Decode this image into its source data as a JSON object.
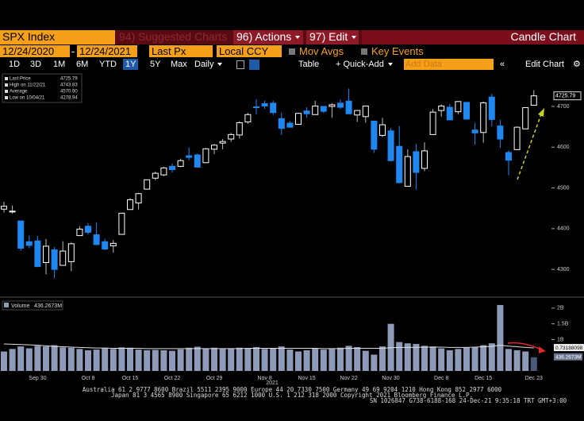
{
  "toolbar": {
    "ticker": "SPX Index",
    "suggested": "94) Suggested Charts",
    "actions": "96) Actions",
    "edit": "97) Edit",
    "chart_type": "Candle Chart",
    "start_date": "12/24/2020",
    "dash": "-",
    "end_date": "12/24/2021",
    "field": "Last Px",
    "currency": "Local CCY",
    "mov_avgs": "Mov Avgs",
    "key_events": "Key Events",
    "periods": [
      "1D",
      "3D",
      "1M",
      "6M",
      "YTD",
      "1Y",
      "5Y",
      "Max"
    ],
    "active_period": "1Y",
    "frequency": "Daily",
    "table": "Table",
    "quick_add": "+ Quick-Add",
    "add_data": "Add Data",
    "edit_chart": "Edit Chart"
  },
  "chart_data": [
    {
      "type": "candlestick",
      "xlabel": "2021",
      "categories": [
        null,
        null,
        null,
        null,
        "Sep 30",
        null,
        null,
        null,
        null,
        null,
        "Oct 8",
        null,
        null,
        null,
        null,
        "Oct 15",
        null,
        null,
        null,
        null,
        "Oct 22",
        null,
        null,
        null,
        null,
        "Oct 29",
        null,
        null,
        null,
        null,
        null,
        "Nov 8",
        null,
        null,
        null,
        null,
        "Nov 15",
        null,
        null,
        null,
        null,
        "Nov 22",
        null,
        null,
        null,
        null,
        "Nov 30",
        null,
        null,
        null,
        null,
        null,
        "Dec 8",
        null,
        null,
        null,
        null,
        "Dec 15",
        null,
        null,
        null,
        null,
        null,
        "Dec 23"
      ],
      "open": [
        4448,
        4442,
        4419,
        4368,
        4370,
        4317,
        4348,
        4310,
        4319,
        4383,
        4406,
        4385,
        4368,
        4358,
        4386,
        4447,
        4463,
        4497,
        4524,
        4532,
        4553,
        4553,
        4579,
        4581,
        4562,
        4595,
        4610,
        4620,
        4630,
        4662,
        4699,
        4707,
        4708,
        4670,
        4659,
        4656,
        4689,
        4680,
        4700,
        4700,
        4708,
        4713,
        4679,
        4675,
        4664,
        4629,
        4640,
        4602,
        4504,
        4589,
        4548,
        4631,
        4690,
        4698,
        4687,
        4710,
        4642,
        4636,
        4723,
        4652,
        4587,
        4594,
        4645,
        4703
      ],
      "high": [
        4466,
        4457,
        4419,
        4383,
        4382,
        4375,
        4355,
        4369,
        4366,
        4406,
        4413,
        4415,
        4375,
        4372,
        4439,
        4475,
        4488,
        4520,
        4540,
        4552,
        4560,
        4572,
        4599,
        4584,
        4598,
        4608,
        4620,
        4635,
        4664,
        4684,
        4718,
        4714,
        4714,
        4685,
        4664,
        4684,
        4698,
        4714,
        4701,
        4708,
        4717,
        4744,
        4691,
        4702,
        4664,
        4672,
        4647,
        4652,
        4595,
        4608,
        4612,
        4694,
        4705,
        4706,
        4713,
        4710,
        4660,
        4712,
        4731,
        4667,
        4592,
        4651,
        4698,
        4740
      ],
      "low": [
        4440,
        4437,
        4346,
        4352,
        4306,
        4288,
        4279,
        4309,
        4296,
        4382,
        4386,
        4360,
        4347,
        4341,
        4386,
        4447,
        4447,
        4497,
        4519,
        4529,
        4538,
        4551,
        4568,
        4551,
        4562,
        4583,
        4595,
        4613,
        4621,
        4657,
        4681,
        4694,
        4679,
        4630,
        4648,
        4656,
        4672,
        4680,
        4684,
        4672,
        4694,
        4681,
        4662,
        4660,
        4586,
        4625,
        4565,
        4511,
        4504,
        4496,
        4541,
        4631,
        4675,
        4667,
        4681,
        4667,
        4606,
        4611,
        4651,
        4598,
        4531,
        4594,
        4645,
        4703
      ],
      "close": [
        4455,
        4443,
        4352,
        4359,
        4307,
        4357,
        4300,
        4345,
        4363,
        4399,
        4391,
        4361,
        4350,
        4364,
        4438,
        4471,
        4486,
        4520,
        4536,
        4549,
        4545,
        4567,
        4575,
        4551,
        4596,
        4605,
        4614,
        4631,
        4660,
        4680,
        4697,
        4701,
        4685,
        4646,
        4649,
        4683,
        4682,
        4701,
        4688,
        4704,
        4698,
        4682,
        4690,
        4701,
        4595,
        4655,
        4567,
        4513,
        4577,
        4538,
        4591,
        4686,
        4701,
        4667,
        4712,
        4669,
        4635,
        4709,
        4668,
        4620,
        4568,
        4649,
        4697,
        4726
      ],
      "up_color": "#ffffff",
      "down_color": "#1e88f0",
      "ylim": [
        4236,
        4776
      ],
      "yticks": [
        4300,
        4400,
        4500,
        4600,
        4700
      ],
      "last_label": "4725.79",
      "legend": [
        {
          "label": "Last Price",
          "value": "4725.79"
        },
        {
          "label": "High on 11/22/21",
          "value": "4743.83"
        },
        {
          "label": "Average",
          "value": "4570.90"
        },
        {
          "label": "Low on 10/04/21",
          "value": "4278.94"
        }
      ]
    },
    {
      "type": "bar",
      "series": [
        {
          "name": "Volume",
          "color": "#8d9bb8",
          "value_label": "436.2673M",
          "values": [
            0.62,
            0.7,
            0.78,
            0.72,
            0.8,
            0.78,
            0.82,
            0.75,
            0.74,
            0.7,
            0.66,
            0.68,
            0.72,
            0.7,
            0.75,
            0.74,
            0.68,
            0.66,
            0.67,
            0.66,
            0.64,
            0.69,
            0.74,
            0.77,
            0.72,
            0.74,
            0.7,
            0.72,
            0.74,
            0.72,
            0.76,
            0.7,
            0.72,
            0.78,
            0.68,
            0.62,
            0.66,
            0.72,
            0.68,
            0.7,
            0.74,
            0.8,
            0.76,
            0.64,
            0.52,
            0.78,
            1.5,
            0.92,
            0.88,
            0.86,
            0.8,
            0.78,
            0.72,
            0.66,
            0.7,
            0.74,
            0.76,
            0.82,
            0.88,
            2.1,
            0.7,
            0.66,
            0.62,
            0.4362673
          ]
        }
      ],
      "ma": {
        "color": "#dddddd",
        "value_label": "0.73188098",
        "values": [
          0.86,
          0.85,
          0.84,
          0.83,
          0.82,
          0.8,
          0.78,
          0.77,
          0.76,
          0.75,
          0.74,
          0.73,
          0.73,
          0.72,
          0.72,
          0.72,
          0.72,
          0.71,
          0.71,
          0.71,
          0.71,
          0.71,
          0.71,
          0.71,
          0.71,
          0.71,
          0.71,
          0.71,
          0.71,
          0.72,
          0.72,
          0.72,
          0.72,
          0.72,
          0.72,
          0.72,
          0.72,
          0.72,
          0.71,
          0.71,
          0.71,
          0.72,
          0.72,
          0.72,
          0.72,
          0.72,
          0.74,
          0.75,
          0.75,
          0.75,
          0.76,
          0.76,
          0.76,
          0.75,
          0.75,
          0.75,
          0.76,
          0.77,
          0.78,
          0.82,
          0.79,
          0.77,
          0.75,
          0.73188098
        ]
      },
      "ylim": [
        0,
        2.25
      ],
      "yticks": [
        {
          "value": 1,
          "label": "1B"
        },
        {
          "value": 1.5,
          "label": "1.5B"
        },
        {
          "value": 2,
          "label": "2B"
        }
      ]
    }
  ],
  "footer": [
    "Australia 61 2 9777 8600 Brazil 5511 2395 9000 Europe 44 20 7330 7500 Germany 49 69 9204 1210 Hong Kong 852 2977 6000",
    "Japan 81 3 4565 8900       Singapore 65 6212 1000       U.S. 1 212 318 2000           Copyright 2021 Bloomberg Finance L.P.",
    "SN 1026847 G738-6188-168 24-Dec-21  9:35:18 TRT  GMT+3:00"
  ]
}
